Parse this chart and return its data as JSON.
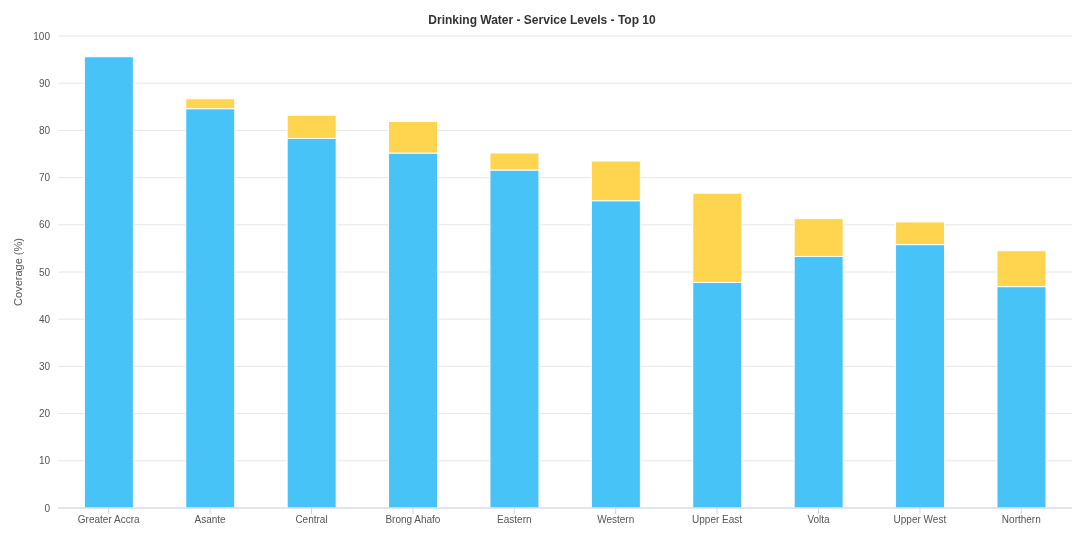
{
  "chart_data": {
    "type": "bar",
    "title": "Drinking Water - Service Levels - Top 10",
    "ylabel": "Coverage (%)",
    "categories": [
      "Greater Accra",
      "Asante",
      "Central",
      "Brong Ahafo",
      "Eastern",
      "Western",
      "Upper East",
      "Volta",
      "Upper West",
      "Northern"
    ],
    "stacked": true,
    "series": [
      {
        "color": "#47c3f8",
        "values": [
          95.6,
          84.6,
          78.3,
          75.2,
          71.6,
          65.1,
          47.8,
          53.3,
          55.8,
          46.9
        ]
      },
      {
        "color": "#ffd44f",
        "values": [
          0,
          2.1,
          4.9,
          6.7,
          3.6,
          8.4,
          18.9,
          8.0,
          4.8,
          7.6
        ]
      }
    ],
    "ylim": [
      0,
      100
    ],
    "yticks": [
      0,
      10,
      20,
      30,
      40,
      50,
      60,
      70,
      80,
      90,
      100
    ],
    "grid": "y"
  }
}
